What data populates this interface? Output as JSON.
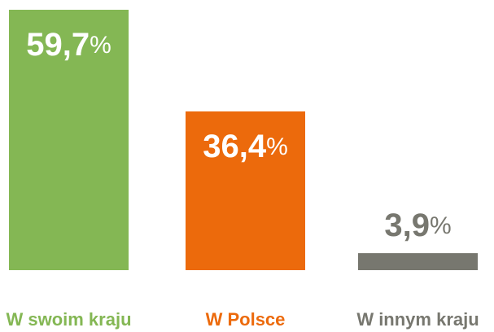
{
  "chart_data": {
    "type": "bar",
    "categories": [
      "W swoim kraju",
      "W Polsce",
      "W innym kraju"
    ],
    "values": [
      59.7,
      36.4,
      3.9
    ],
    "value_labels": [
      "59,7%",
      "36,4%",
      "3,9%"
    ],
    "colors": [
      "#84b754",
      "#ec6a0c",
      "#77776f"
    ]
  }
}
